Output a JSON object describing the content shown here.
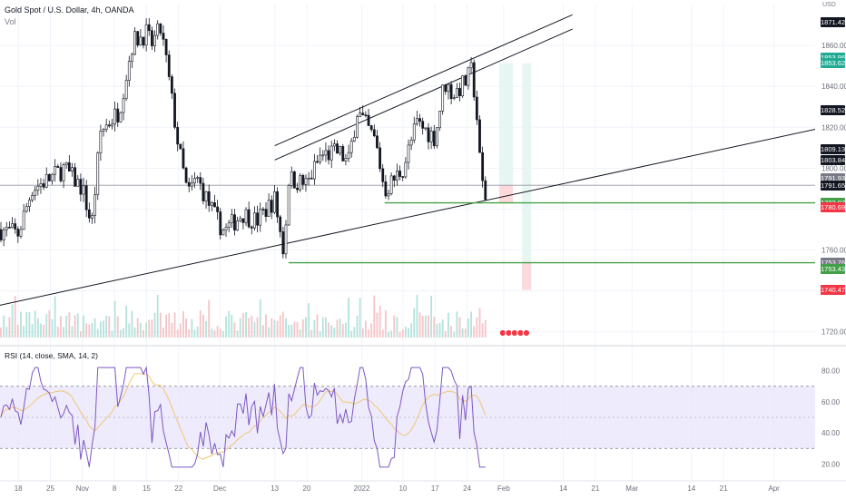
{
  "header": {
    "symbol_line": "Gold Spot / U.S. Dollar, 4h, OANDA",
    "volume_label": "Vol",
    "currency": "USD"
  },
  "rsi_panel": {
    "label": "RSI (14, close, SMA, 14, 2)",
    "upper_band": 70,
    "lower_band": 30,
    "ticks": [
      "80.00",
      "60.00",
      "40.00",
      "20.00"
    ],
    "band_color": "#e8e4fb",
    "line_color": "#7e57c2",
    "sma_color": "#f0c674"
  },
  "price_axis": {
    "ticks": [
      "1860.000",
      "1840.000",
      "1820.000",
      "1800.000",
      "1780.000",
      "1760.000",
      "1740.000",
      "1720.000"
    ],
    "tags": [
      {
        "text": "1871.429",
        "color": "#131722",
        "price": 1871.429
      },
      {
        "text": "1853.965",
        "color": "#22ab94",
        "price": 1853.965
      },
      {
        "text": "1853.624",
        "color": "#22ab94",
        "price": 1851.3
      },
      {
        "text": "1828.526",
        "color": "#131722",
        "price": 1828.526
      },
      {
        "text": "1809.131",
        "color": "#131722",
        "price": 1809.131
      },
      {
        "text": "1803.842",
        "color": "#131722",
        "price": 1803.842
      },
      {
        "text": "1791.937",
        "color": "#787b86",
        "price": 1795.0
      },
      {
        "text": "1791.655",
        "color": "#131722",
        "price": 1791.655
      },
      {
        "text": "1783.075",
        "color": "#43a047",
        "price": 1783.075
      },
      {
        "text": "1780.690",
        "color": "#f23645",
        "price": 1780.69
      },
      {
        "text": "1753.765",
        "color": "#787b86",
        "price": 1753.765
      },
      {
        "text": "1753.436",
        "color": "#43a047",
        "price": 1750.5
      },
      {
        "text": "1740.474",
        "color": "#f23645",
        "price": 1740.474
      }
    ]
  },
  "time_axis": [
    "18",
    "25",
    "Nov",
    "8",
    "15",
    "22",
    "Dec",
    "13",
    "20",
    "2022",
    "10",
    "17",
    "24",
    "Feb",
    "14",
    "21",
    "Mar",
    "14",
    "21",
    "Apr"
  ],
  "chart_data": {
    "type": "candlestick",
    "title": "Gold Spot / U.S. Dollar, 4h, OANDA",
    "price_range": [
      1715,
      1880
    ],
    "close_trace": [
      {
        "date": "2021-10-14",
        "close": 1770
      },
      {
        "date": "2021-10-18",
        "close": 1768
      },
      {
        "date": "2021-10-21",
        "close": 1790
      },
      {
        "date": "2021-10-25",
        "close": 1795
      },
      {
        "date": "2021-10-28",
        "close": 1800
      },
      {
        "date": "2021-11-01",
        "close": 1790
      },
      {
        "date": "2021-11-03",
        "close": 1772
      },
      {
        "date": "2021-11-05",
        "close": 1818
      },
      {
        "date": "2021-11-09",
        "close": 1828
      },
      {
        "date": "2021-11-12",
        "close": 1862
      },
      {
        "date": "2021-11-15",
        "close": 1866
      },
      {
        "date": "2021-11-16",
        "close": 1860
      },
      {
        "date": "2021-11-18",
        "close": 1868
      },
      {
        "date": "2021-11-19",
        "close": 1857
      },
      {
        "date": "2021-11-22",
        "close": 1810
      },
      {
        "date": "2021-11-24",
        "close": 1787
      },
      {
        "date": "2021-11-26",
        "close": 1795
      },
      {
        "date": "2021-11-30",
        "close": 1776
      },
      {
        "date": "2021-12-02",
        "close": 1769
      },
      {
        "date": "2021-12-06",
        "close": 1778
      },
      {
        "date": "2021-12-09",
        "close": 1774
      },
      {
        "date": "2021-12-13",
        "close": 1785
      },
      {
        "date": "2021-12-15",
        "close": 1758
      },
      {
        "date": "2021-12-16",
        "close": 1795
      },
      {
        "date": "2021-12-20",
        "close": 1792
      },
      {
        "date": "2021-12-23",
        "close": 1806
      },
      {
        "date": "2021-12-27",
        "close": 1808
      },
      {
        "date": "2021-12-29",
        "close": 1802
      },
      {
        "date": "2021-12-31",
        "close": 1828
      },
      {
        "date": "2022-01-04",
        "close": 1813
      },
      {
        "date": "2022-01-06",
        "close": 1789
      },
      {
        "date": "2022-01-10",
        "close": 1800
      },
      {
        "date": "2022-01-13",
        "close": 1822
      },
      {
        "date": "2022-01-17",
        "close": 1815
      },
      {
        "date": "2022-01-19",
        "close": 1842
      },
      {
        "date": "2022-01-21",
        "close": 1836
      },
      {
        "date": "2022-01-24",
        "close": 1843
      },
      {
        "date": "2022-01-25",
        "close": 1848
      },
      {
        "date": "2022-01-26",
        "close": 1829
      },
      {
        "date": "2022-01-27",
        "close": 1796
      },
      {
        "date": "2022-01-28",
        "close": 1786
      },
      {
        "date": "2022-01-28",
        "close": 1791.655
      }
    ],
    "lines": {
      "channel_upper_1": [
        [
          "2021-12-13",
          1811
        ],
        [
          "2022-02-16",
          1875
        ]
      ],
      "channel_upper_2": [
        [
          "2021-12-13",
          1804
        ],
        [
          "2022-02-16",
          1868
        ]
      ],
      "trendline_support": [
        [
          "2021-10-14",
          1733
        ],
        [
          "2022-04-10",
          1819
        ]
      ],
      "horizontal_1791": [
        [
          "2021-10-14",
          1791.655
        ],
        [
          "2022-04-10",
          1791.655
        ]
      ],
      "support_1783": [
        [
          "2022-01-06",
          1783.075
        ],
        [
          "2022-04-10",
          1783.075
        ]
      ],
      "support_1753": [
        [
          "2021-12-16",
          1753.765
        ],
        [
          "2022-04-10",
          1753.765
        ]
      ]
    },
    "positions": [
      {
        "from": "2022-01-31",
        "to": "2022-02-03",
        "target": 1851.3,
        "entry": 1791.655,
        "stop": 1783.075
      },
      {
        "from": "2022-02-05",
        "to": "2022-02-07",
        "target": 1851.3,
        "entry": 1753.765,
        "stop": 1740.474
      }
    ],
    "rsi_range": [
      15,
      85
    ]
  }
}
